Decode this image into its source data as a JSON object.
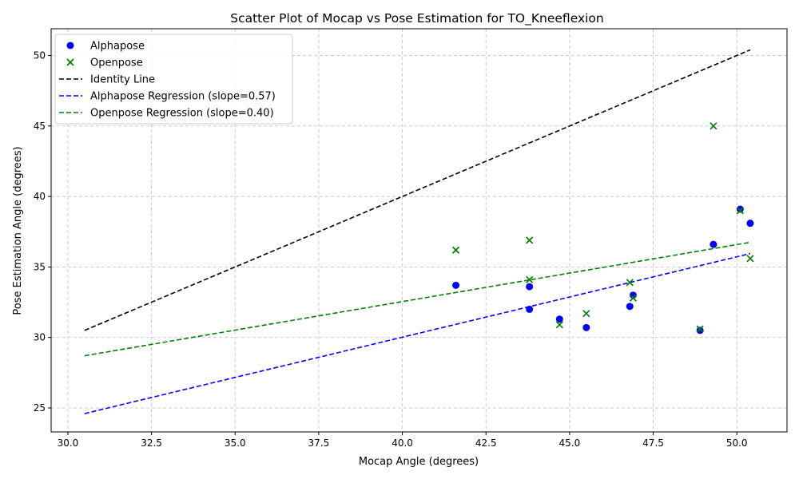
{
  "chart_data": {
    "type": "scatter",
    "title": "Scatter Plot of Mocap vs Pose Estimation for TO_Kneeflexion",
    "xlabel": "Mocap Angle (degrees)",
    "ylabel": "Pose Estimation Angle (degrees)",
    "xlim": [
      29.5,
      51.5
    ],
    "ylim": [
      23.3,
      51.9
    ],
    "xticks": [
      "30.0",
      "32.5",
      "35.0",
      "37.5",
      "40.0",
      "42.5",
      "45.0",
      "47.5",
      "50.0"
    ],
    "yticks": [
      "25",
      "30",
      "35",
      "40",
      "45",
      "50"
    ],
    "grid": true,
    "legend_position": "top-left",
    "series": [
      {
        "name": "Alphapose",
        "kind": "points",
        "marker": "circle",
        "color": "#0000ff",
        "x": [
          41.6,
          43.8,
          43.8,
          44.7,
          45.5,
          46.8,
          46.9,
          48.9,
          49.3,
          50.1,
          50.4
        ],
        "y": [
          33.7,
          33.6,
          32.0,
          31.3,
          30.7,
          32.2,
          33.0,
          30.5,
          36.6,
          39.1,
          38.1
        ]
      },
      {
        "name": "Openpose",
        "kind": "points",
        "marker": "x",
        "color": "#008000",
        "x": [
          41.6,
          43.8,
          43.8,
          44.7,
          45.5,
          46.8,
          46.9,
          48.9,
          49.3,
          50.1,
          50.4
        ],
        "y": [
          36.2,
          36.9,
          34.1,
          30.9,
          31.7,
          33.9,
          32.8,
          30.6,
          45.0,
          39.0,
          35.6
        ]
      },
      {
        "name": "Identity Line",
        "kind": "line",
        "color": "#000000",
        "x": [
          30.5,
          50.4
        ],
        "y": [
          30.5,
          50.4
        ]
      },
      {
        "name": "Alphapose Regression (slope=0.57)",
        "kind": "line",
        "color": "#0000ff",
        "x": [
          30.5,
          50.4
        ],
        "y": [
          24.6,
          35.95
        ]
      },
      {
        "name": "Openpose Regression (slope=0.40)",
        "kind": "line",
        "color": "#008000",
        "x": [
          30.5,
          50.4
        ],
        "y": [
          28.7,
          36.75
        ]
      }
    ]
  }
}
